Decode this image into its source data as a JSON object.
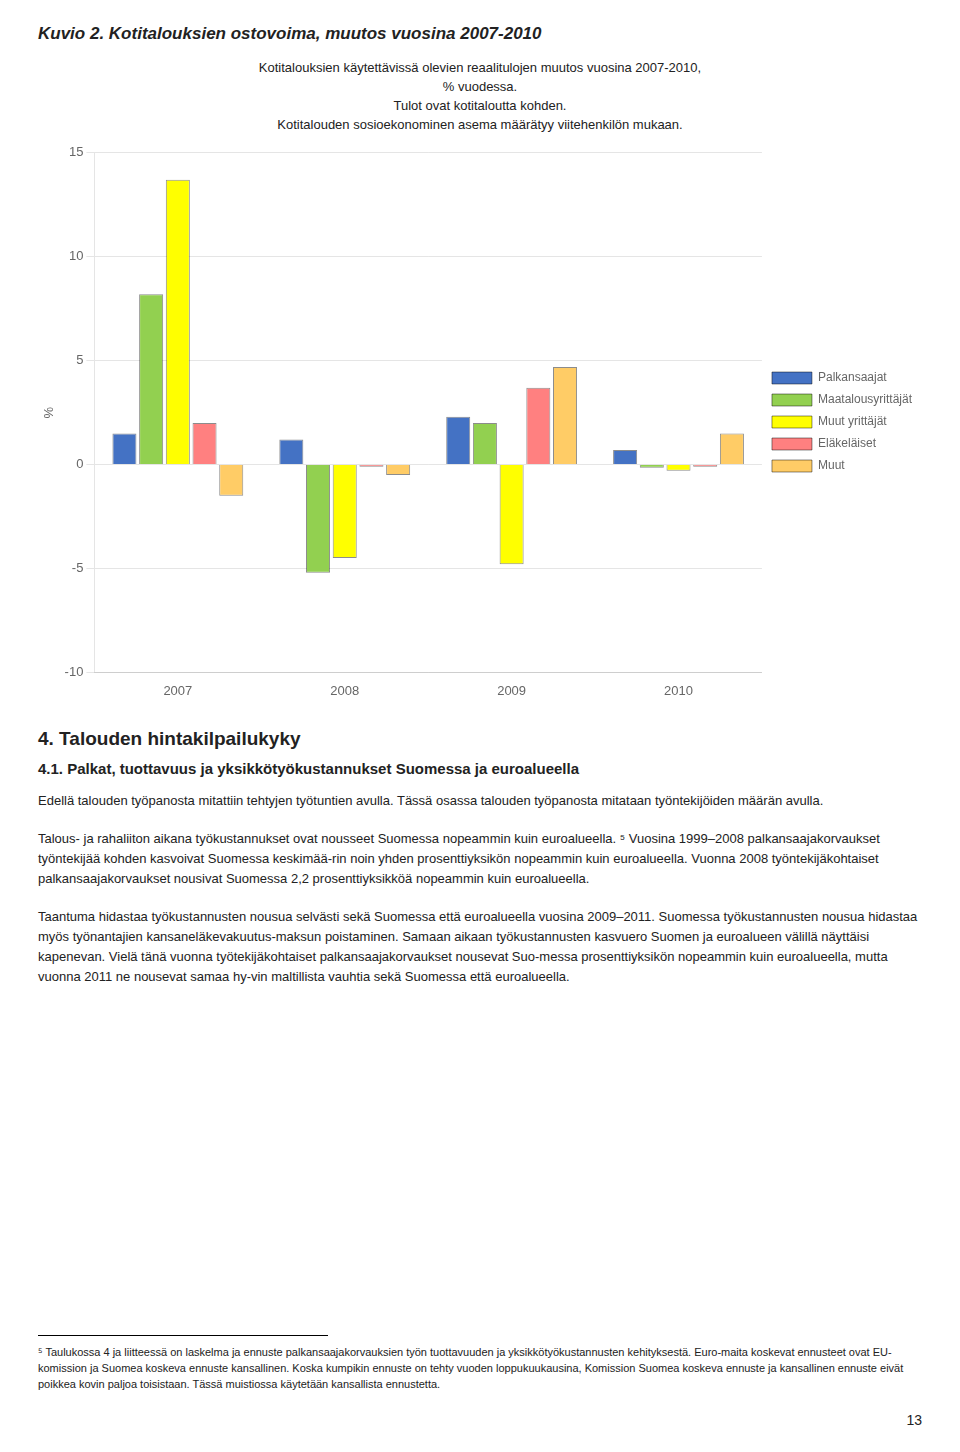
{
  "chart_data": {
    "type": "bar",
    "title": "Kuvio 2. Kotitalouksien ostovoima, muutos vuosina 2007-2010",
    "subtitle": [
      "Kotitalouksien käytettävissä olevien reaalitulojen muutos vuosina 2007-2010,",
      "% vuodessa.",
      "Tulot ovat kotitaloutta kohden.",
      "Kotitalouden sosioekonominen asema määrätyy viitehenkilön mukaan."
    ],
    "ylabel": "%",
    "categories": [
      "2007",
      "2008",
      "2009",
      "2010"
    ],
    "series": [
      {
        "name": "Palkansaajat",
        "color": "#4472c4",
        "values": [
          1.5,
          1.2,
          2.3,
          0.7
        ]
      },
      {
        "name": "Maatalousyrittäjät",
        "color": "#92d050",
        "values": [
          8.2,
          -5.2,
          2.0,
          -0.15
        ]
      },
      {
        "name": "Muut yrittäjät",
        "color": "#ffff00",
        "values": [
          13.7,
          -4.5,
          -4.8,
          -0.3
        ]
      },
      {
        "name": "Eläkeläiset",
        "color": "#ff8080",
        "values": [
          2.0,
          -0.1,
          3.7,
          -0.1
        ]
      },
      {
        "name": "Muut",
        "color": "#ffcc66",
        "values": [
          -1.5,
          -0.5,
          4.7,
          1.5
        ]
      }
    ],
    "ylim": [
      -10,
      15
    ],
    "yticks": [
      -10,
      -5,
      0,
      5,
      10,
      15
    ],
    "grid": true,
    "legend": "right",
    "annotations": [
      "4. Talouden hintakilpailukyky",
      "4.1.  Palkat, tuottavuus ja yksikkötyökustannukset Suomessa ja euroalueella",
      "Edellä talouden työpanosta mitattiin tehtyjen työtuntien avulla. Tässä osassa talouden työpanosta mitataan työntekijöiden määrän avulla.",
      "Talous- ja rahaliiton aikana työkustannukset ovat nousseet Suomessa nopeammin kuin euroalueella. ⁵ Vuosina 1999–2008 palkansaajakorvaukset työntekijää kohden kasvoivat Suomessa keskimää-rin noin yhden prosenttiyksikön nopeammin kuin euroalueella. Vuonna 2008 työntekijäkohtaiset palkansaajakorvaukset nousivat Suomessa 2,2 prosenttiyksikköä nopeammin kuin euroalueella.",
      "Taantuma hidastaa työkustannusten nousua selvästi sekä Suomessa että euroalueella vuosina 2009–2011. Suomessa työkustannusten nousua hidastaa myös työnantajien kansaneläkevakuutus-maksun poistaminen. Samaan aikaan työkustannusten kasvuero Suomen ja euroalueen välillä näyttäisi kapenevan. Vielä tänä vuonna työtekijäkohtaiset palkansaajakorvaukset nousevat Suo-messa prosenttiyksikön nopeammin kuin euroalueella, mutta vuonna 2011 ne nousevat samaa hy-vin maltillista vauhtia sekä Suomessa että euroalueella.",
      "⁵ Taulukossa 4 ja liitteessä on laskelma ja ennuste palkansaajakorvauksien työn tuottavuuden ja yksikkötyökustannusten kehityksestä. Euro-maita koskevat ennusteet ovat EU-komission ja Suomea koskeva ennuste kansallinen. Koska kumpikin ennuste on tehty vuoden loppukuukausina, Komission Suomea koskeva ennuste ja kansallinen ennuste eivät poikkea kovin paljoa toisistaan. Tässä muistiossa käytetään kansallista ennustetta.",
      "13"
    ]
  }
}
